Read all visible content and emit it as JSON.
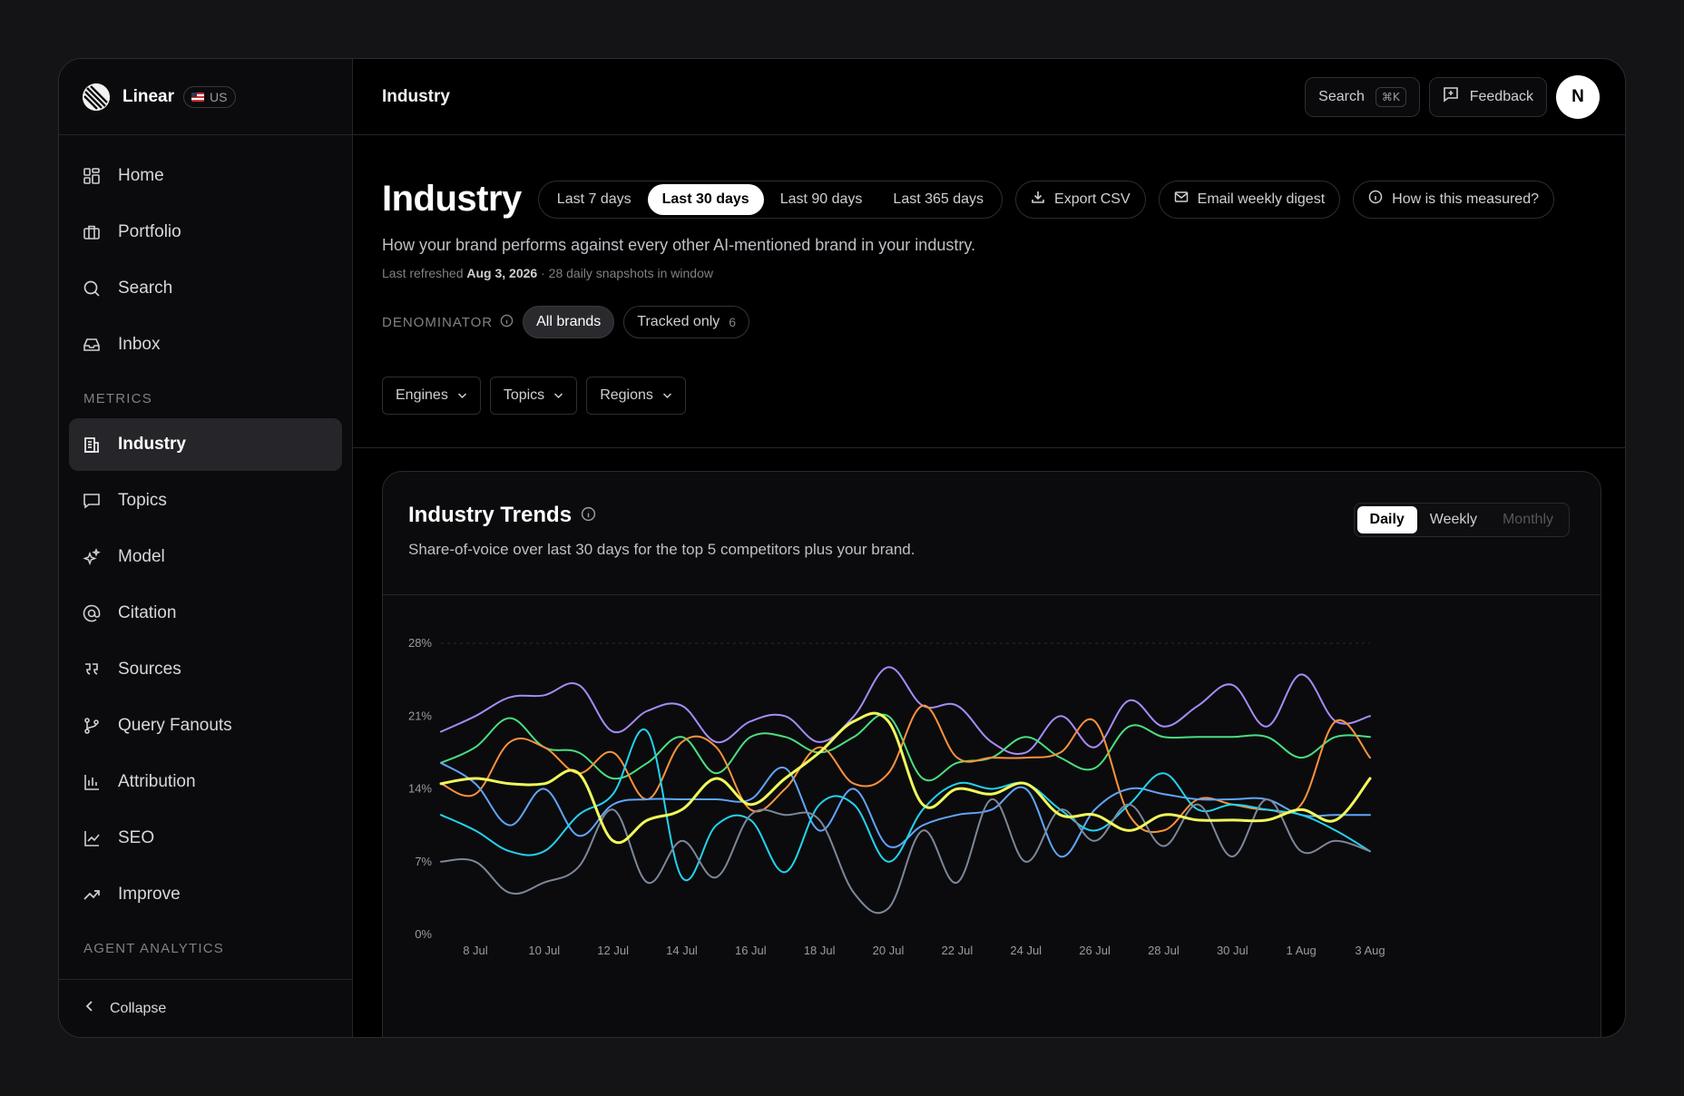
{
  "sidebar": {
    "brand_name": "Linear",
    "region_badge": "US",
    "nav_items": [
      {
        "label": "Home",
        "icon": "grid-icon"
      },
      {
        "label": "Portfolio",
        "icon": "briefcase-icon"
      },
      {
        "label": "Search",
        "icon": "search-icon"
      },
      {
        "label": "Inbox",
        "icon": "inbox-icon"
      }
    ],
    "metrics_section": "METRICS",
    "metrics_items": [
      {
        "label": "Industry",
        "icon": "building-icon",
        "active": true
      },
      {
        "label": "Topics",
        "icon": "message-icon"
      },
      {
        "label": "Model",
        "icon": "sparkles-icon"
      },
      {
        "label": "Citation",
        "icon": "at-sign-icon"
      },
      {
        "label": "Sources",
        "icon": "quote-icon"
      },
      {
        "label": "Query Fanouts",
        "icon": "git-branch-icon"
      },
      {
        "label": "Attribution",
        "icon": "bar-chart-icon"
      },
      {
        "label": "SEO",
        "icon": "line-chart-icon"
      },
      {
        "label": "Improve",
        "icon": "trending-up-icon"
      }
    ],
    "agent_section": "AGENT ANALYTICS",
    "collapse_label": "Collapse"
  },
  "topbar": {
    "title": "Industry",
    "search_label": "Search",
    "search_shortcut": "⌘K",
    "feedback_label": "Feedback",
    "avatar_initial": "N"
  },
  "header": {
    "title": "Industry",
    "ranges": [
      "Last 7 days",
      "Last 30 days",
      "Last 90 days",
      "Last 365 days"
    ],
    "active_range": "Last 30 days",
    "export_label": "Export CSV",
    "digest_label": "Email weekly digest",
    "measured_label": "How is this measured?",
    "subtitle": "How your brand performs against every other AI-mentioned brand in your industry.",
    "meta_prefix": "Last refreshed",
    "meta_date": "Aug 3, 2026",
    "meta_suffix": "· 28 daily snapshots in window",
    "denominator_label": "DENOMINATOR",
    "denom_all": "All brands",
    "denom_tracked": "Tracked only",
    "denom_tracked_count": "6",
    "filters": [
      "Engines",
      "Topics",
      "Regions"
    ]
  },
  "card": {
    "title": "Industry Trends",
    "subtitle": "Share-of-voice over last 30 days for the top 5 competitors plus your brand.",
    "granularity": [
      "Daily",
      "Weekly",
      "Monthly"
    ],
    "active_granularity": "Daily"
  },
  "chart_data": {
    "type": "line",
    "ylim": [
      0,
      28
    ],
    "y_ticks": [
      "0%",
      "7%",
      "14%",
      "21%",
      "28%"
    ],
    "x_tick_labels": [
      "8 Jul",
      "10 Jul",
      "12 Jul",
      "14 Jul",
      "16 Jul",
      "18 Jul",
      "20 Jul",
      "22 Jul",
      "24 Jul",
      "26 Jul",
      "28 Jul",
      "30 Jul",
      "1 Aug",
      "3 Aug"
    ],
    "x": [
      "7 Jul",
      "8 Jul",
      "9 Jul",
      "10 Jul",
      "11 Jul",
      "12 Jul",
      "13 Jul",
      "14 Jul",
      "15 Jul",
      "16 Jul",
      "17 Jul",
      "18 Jul",
      "19 Jul",
      "20 Jul",
      "21 Jul",
      "22 Jul",
      "23 Jul",
      "24 Jul",
      "25 Jul",
      "26 Jul",
      "27 Jul",
      "28 Jul",
      "29 Jul",
      "30 Jul",
      "31 Jul",
      "1 Aug",
      "2 Aug",
      "3 Aug"
    ],
    "grid": true,
    "series": [
      {
        "color": "#a78bfa",
        "width": 2,
        "values": [
          19.5,
          21.0,
          22.8,
          23.0,
          24.0,
          19.5,
          21.5,
          22.0,
          18.5,
          20.5,
          21.0,
          18.5,
          21.0,
          25.7,
          22.0,
          22.0,
          18.5,
          17.5,
          21.0,
          18.0,
          22.5,
          20.0,
          22.0,
          24.0,
          20.0,
          25.0,
          20.5,
          21.0
        ]
      },
      {
        "color": "#4ade80",
        "width": 2,
        "values": [
          16.5,
          18.0,
          20.8,
          18.0,
          17.5,
          15.0,
          16.5,
          19.0,
          15.5,
          19.0,
          19.0,
          17.5,
          19.0,
          21.0,
          15.0,
          16.5,
          17.0,
          19.0,
          17.0,
          16.0,
          20.0,
          19.0,
          19.0,
          19.0,
          19.0,
          17.0,
          19.0,
          19.0
        ]
      },
      {
        "color": "#fb923c",
        "width": 2,
        "values": [
          14.5,
          13.5,
          18.5,
          18.0,
          15.5,
          17.5,
          13.0,
          18.5,
          18.0,
          12.0,
          14.0,
          18.0,
          14.5,
          15.5,
          22.0,
          17.0,
          17.0,
          17.0,
          17.5,
          20.5,
          11.5,
          10.0,
          13.0,
          12.5,
          12.0,
          12.5,
          20.5,
          17.0
        ]
      },
      {
        "color": "#60a5fa",
        "width": 2,
        "values": [
          16.5,
          14.5,
          10.5,
          14.0,
          9.5,
          12.5,
          13.0,
          13.0,
          13.0,
          13.0,
          16.0,
          10.0,
          14.0,
          8.5,
          10.5,
          11.5,
          12.0,
          14.0,
          7.5,
          12.0,
          14.0,
          13.5,
          13.0,
          13.0,
          13.0,
          11.5,
          11.5,
          11.5
        ]
      },
      {
        "color": "#22d3ee",
        "width": 2,
        "values": [
          11.5,
          10.0,
          8.0,
          8.0,
          11.5,
          13.5,
          19.5,
          5.5,
          10.5,
          11.0,
          6.0,
          12.5,
          12.5,
          7.0,
          12.0,
          14.5,
          14.0,
          14.5,
          12.0,
          10.0,
          12.5,
          15.5,
          12.0,
          12.5,
          12.0,
          11.5,
          10.0,
          8.0
        ]
      },
      {
        "color": "#7c8799",
        "width": 2,
        "values": [
          7.0,
          7.0,
          4.0,
          5.0,
          6.5,
          12.0,
          5.0,
          9.0,
          5.5,
          11.5,
          11.5,
          11.0,
          4.0,
          2.5,
          10.0,
          5.0,
          13.0,
          7.0,
          12.0,
          9.0,
          12.5,
          8.5,
          12.5,
          7.5,
          13.0,
          8.0,
          9.0,
          8.0
        ]
      },
      {
        "color": "#f0fa5a",
        "width": 3,
        "values": [
          14.5,
          15.0,
          14.5,
          14.5,
          15.5,
          9.0,
          11.0,
          12.0,
          15.0,
          12.5,
          15.0,
          17.5,
          20.5,
          20.5,
          12.5,
          14.0,
          13.5,
          14.5,
          11.5,
          11.5,
          10.0,
          11.5,
          11.0,
          11.0,
          11.0,
          12.0,
          11.0,
          15.0
        ]
      }
    ]
  }
}
